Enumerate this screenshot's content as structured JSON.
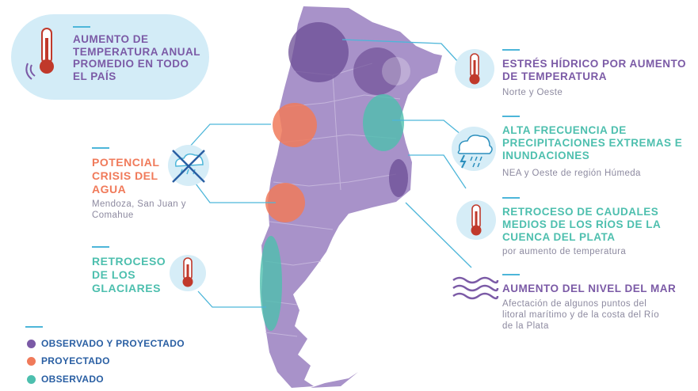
{
  "colors": {
    "purple": "#7b5aa6",
    "map_fill": "#a892c9",
    "orange": "#f07a5a",
    "teal": "#4dbfae",
    "blue_title": "#2a5fa3",
    "line": "#4db6d9"
  },
  "top_left": {
    "title": "AUMENTO DE TEMPERATURA ANUAL PROMEDIO EN TODO EL PAÍS",
    "icon": "thermometer-icon"
  },
  "left": [
    {
      "title": "POTENCIAL CRISIS DEL AGUA",
      "subtitle": "Mendoza, San Juan y Comahue",
      "icon": "no-water-icon",
      "color": "orange"
    },
    {
      "title": "RETROCESO DE LOS GLACIARES",
      "subtitle": "",
      "icon": "thermometer-icon",
      "color": "teal"
    }
  ],
  "right": [
    {
      "title": "ESTRÉS HÍDRICO POR AUMENTO DE TEMPERATURA",
      "subtitle": "Norte y Oeste",
      "icon": "thermometer-icon",
      "color": "purple"
    },
    {
      "title": "ALTA FRECUENCIA DE PRECIPITACIONES EXTREMAS E INUNDACIONES",
      "subtitle": "NEA y Oeste de región Húmeda",
      "icon": "storm-cloud-icon",
      "color": "teal"
    },
    {
      "title": "RETROCESO DE CAUDALES MEDIOS DE LOS RÍOS DE LA CUENCA DEL PLATA",
      "subtitle": "por aumento de temperatura",
      "icon": "thermometer-icon",
      "color": "teal"
    },
    {
      "title": "AUMENTO DEL NIVEL DEL MAR",
      "subtitle": "Afectación de algunos puntos del litoral marítimo y de la costa del Río de la Plata",
      "icon": "waves-icon",
      "color": "purple"
    }
  ],
  "legend": [
    {
      "label": "OBSERVADO Y PROYECTADO",
      "color": "#7b5aa6"
    },
    {
      "label": "PROYECTADO",
      "color": "#f07a5a"
    },
    {
      "label": "OBSERVADO",
      "color": "#4dbfae"
    }
  ]
}
